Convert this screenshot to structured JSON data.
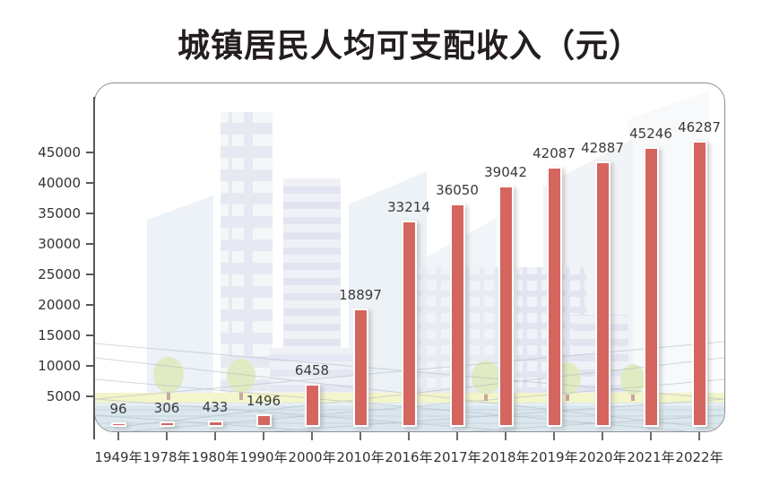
{
  "title": "城镇居民人均可支配收入（元）",
  "chart_data": {
    "type": "bar",
    "title": "城镇居民人均可支配收入（元）",
    "categories": [
      "1949年",
      "1978年",
      "1980年",
      "1990年",
      "2000年",
      "2010年",
      "2016年",
      "2017年",
      "2018年",
      "2019年",
      "2020年",
      "2021年",
      "2022年"
    ],
    "values": [
      96,
      306,
      433,
      1496,
      6458,
      18897,
      33214,
      36050,
      39042,
      42087,
      42887,
      45246,
      46287
    ],
    "value_labels": [
      "96",
      "306",
      "433",
      "1496",
      "6458",
      "18897",
      "33214",
      "36050",
      "39042",
      "42087",
      "42887",
      "45246",
      "46287"
    ],
    "xlabel": "",
    "ylabel": "",
    "ylim": [
      0,
      48000
    ],
    "yticks": [
      5000,
      10000,
      15000,
      20000,
      25000,
      30000,
      35000,
      40000,
      45000
    ],
    "grid": false,
    "legend": "none",
    "bar_color": "#d5655f",
    "bar_stroke": "#ffffff",
    "background": "light cityscape illustration with buildings, trees, yellow road band and perspective floor grid"
  },
  "colors": {
    "bar": "#d5655f",
    "title_text": "#241d1d",
    "axis_text": "#333333",
    "axis_line": "#58585a",
    "card_border": "#8f8f8f",
    "ground_yellow": "#f3f5cb",
    "ground_blue": "#dbe7ee",
    "building_lavender": "#e4e6f0",
    "tree_green": "#e0ebc3"
  }
}
